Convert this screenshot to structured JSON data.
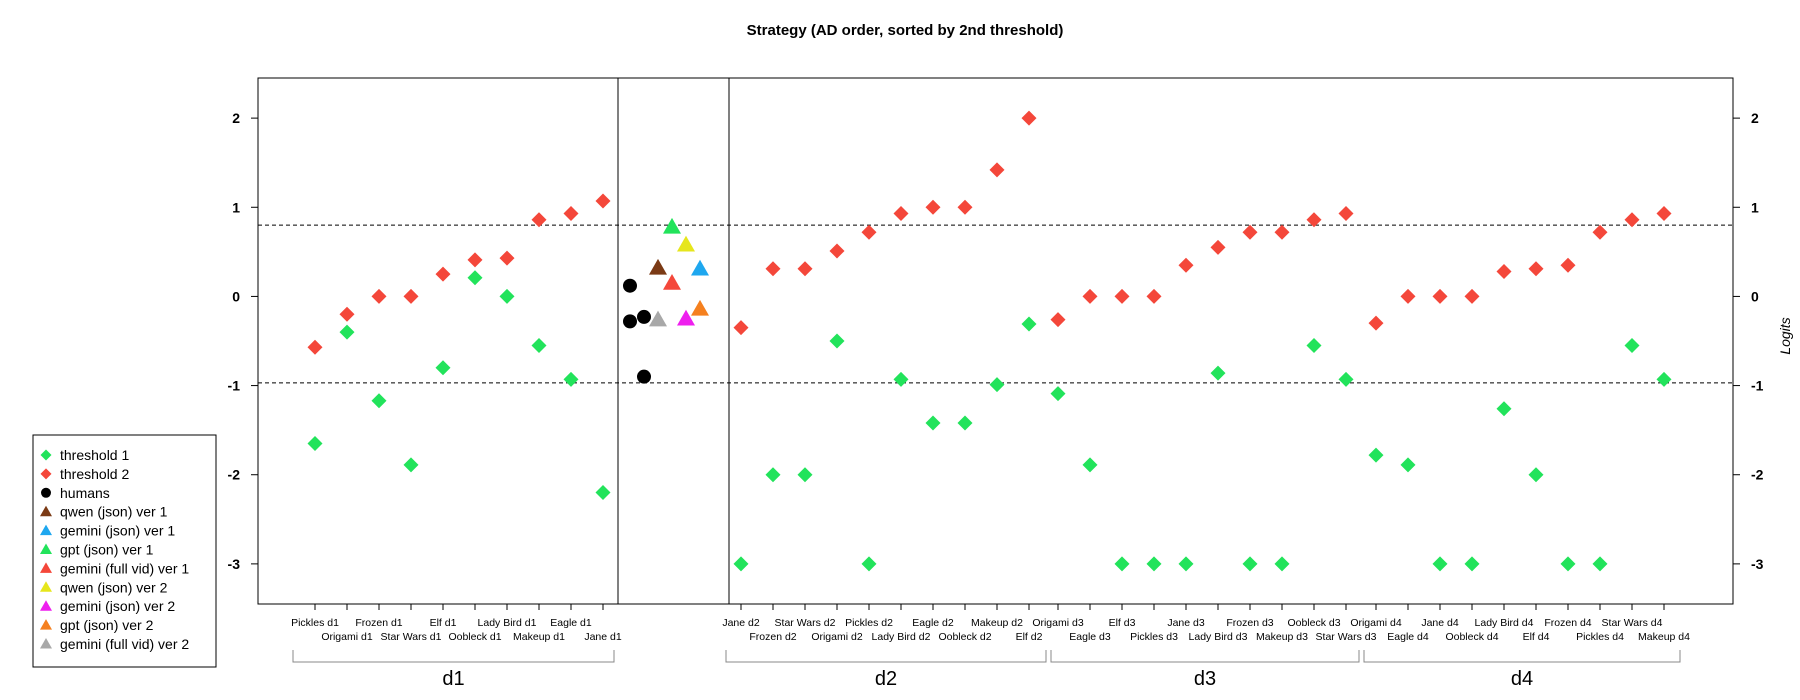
{
  "chart_data": {
    "type": "scatter",
    "title": "Strategy (AD order, sorted by 2nd threshold)",
    "ylabel": "Logits",
    "ylim": [
      -3.45,
      2.45
    ],
    "yticks": [
      2,
      1,
      0,
      -1,
      -2,
      -3
    ],
    "reference_lines": [
      0.8,
      -0.97
    ],
    "colors": {
      "threshold1": "#22e35b",
      "threshold2": "#f4473a",
      "humans": "#000000",
      "qwen_json_v1": "#7b3a15",
      "gemini_json_v1": "#1ea7ef",
      "gpt_json_v1": "#22e35b",
      "gemini_full_v1": "#f4473a",
      "qwen_json_v2": "#e6e61c",
      "gemini_json_v2": "#ee1fee",
      "gpt_json_v2": "#f5801f",
      "gemini_full_v2": "#a8a8a8"
    },
    "groups": [
      {
        "name": "d1",
        "categories": [
          "Pickles d1",
          "Origami d1",
          "Frozen d1",
          "Star Wars d1",
          "Elf d1",
          "Oobleck d1",
          "Lady Bird d1",
          "Makeup d1",
          "Eagle d1",
          "Jane d1"
        ],
        "threshold1": [
          -1.65,
          -0.4,
          -1.17,
          -1.89,
          -0.8,
          0.21,
          0.0,
          -0.55,
          -0.93,
          -2.2
        ],
        "threshold2": [
          -0.57,
          -0.2,
          0.0,
          0.0,
          0.25,
          0.41,
          0.43,
          0.86,
          0.93,
          1.07
        ]
      },
      {
        "name": "d2",
        "categories": [
          "Jane d2",
          "Frozen d2",
          "Star Wars d2",
          "Origami d2",
          "Pickles d2",
          "Lady Bird d2",
          "Eagle d2",
          "Oobleck d2",
          "Makeup d2",
          "Elf d2"
        ],
        "threshold1": [
          -3.0,
          -2.0,
          -2.0,
          -0.5,
          -3.0,
          -0.93,
          -1.42,
          -1.42,
          -0.99,
          -0.31
        ],
        "threshold2": [
          -0.35,
          0.31,
          0.31,
          0.51,
          0.72,
          0.93,
          1.0,
          1.0,
          1.42,
          2.0
        ]
      },
      {
        "name": "d3",
        "categories": [
          "Origami d3",
          "Eagle d3",
          "Elf d3",
          "Pickles d3",
          "Jane d3",
          "Lady Bird d3",
          "Frozen d3",
          "Makeup d3",
          "Oobleck d3",
          "Star Wars d3"
        ],
        "threshold1": [
          -1.09,
          -1.89,
          -3.0,
          -3.0,
          -3.0,
          -0.86,
          -3.0,
          -3.0,
          -0.55,
          -0.93
        ],
        "threshold2": [
          -0.26,
          0.0,
          0.0,
          0.0,
          0.35,
          0.55,
          0.72,
          0.72,
          0.86,
          0.93
        ]
      },
      {
        "name": "d4",
        "categories": [
          "Origami d4",
          "Eagle d4",
          "Jane d4",
          "Oobleck d4",
          "Lady Bird d4",
          "Elf d4",
          "Frozen d4",
          "Pickles d4",
          "Star Wars d4",
          "Makeup d4"
        ],
        "threshold1": [
          -1.78,
          -1.89,
          -3.0,
          -3.0,
          -1.26,
          -2.0,
          -3.0,
          -3.0,
          -0.55,
          -0.93
        ],
        "threshold2": [
          -0.3,
          0.0,
          0.0,
          0.0,
          0.28,
          0.31,
          0.35,
          0.72,
          0.86,
          0.93
        ]
      }
    ],
    "humans": [
      {
        "x": 0.0,
        "y": 0.12
      },
      {
        "x": 0.0,
        "y": -0.28
      },
      {
        "x": 0.5,
        "y": -0.23
      },
      {
        "x": 0.5,
        "y": -0.9
      }
    ],
    "models": [
      {
        "key": "qwen_json_v1",
        "x": 1.0,
        "y": 0.32
      },
      {
        "key": "gemini_full_v2",
        "x": 1.0,
        "y": -0.26
      },
      {
        "key": "gpt_json_v1",
        "x": 1.5,
        "y": 0.78
      },
      {
        "key": "gemini_full_v1",
        "x": 1.5,
        "y": 0.15
      },
      {
        "key": "qwen_json_v2",
        "x": 2.0,
        "y": 0.58
      },
      {
        "key": "gemini_json_v2",
        "x": 2.0,
        "y": -0.25
      },
      {
        "key": "gemini_json_v1",
        "x": 2.5,
        "y": 0.31
      },
      {
        "key": "gpt_json_v2",
        "x": 2.5,
        "y": -0.14
      }
    ],
    "legend": [
      {
        "label": "threshold 1",
        "shape": "diamond",
        "color": "#22e35b"
      },
      {
        "label": "threshold 2",
        "shape": "diamond",
        "color": "#f4473a"
      },
      {
        "label": "humans",
        "shape": "circle",
        "color": "#000000"
      },
      {
        "label": "qwen (json) ver 1",
        "shape": "triangle",
        "color": "#7b3a15"
      },
      {
        "label": "gemini (json) ver 1",
        "shape": "triangle",
        "color": "#1ea7ef"
      },
      {
        "label": "gpt (json) ver 1",
        "shape": "triangle",
        "color": "#22e35b"
      },
      {
        "label": "gemini (full vid) ver 1",
        "shape": "triangle",
        "color": "#f4473a"
      },
      {
        "label": "qwen (json) ver 2",
        "shape": "triangle",
        "color": "#e6e61c"
      },
      {
        "label": "gemini (json) ver 2",
        "shape": "triangle",
        "color": "#ee1fee"
      },
      {
        "label": "gpt (json) ver 2",
        "shape": "triangle",
        "color": "#f5801f"
      },
      {
        "label": "gemini (full vid) ver 2",
        "shape": "triangle",
        "color": "#a8a8a8"
      }
    ],
    "legend_position": "bottom-left"
  }
}
